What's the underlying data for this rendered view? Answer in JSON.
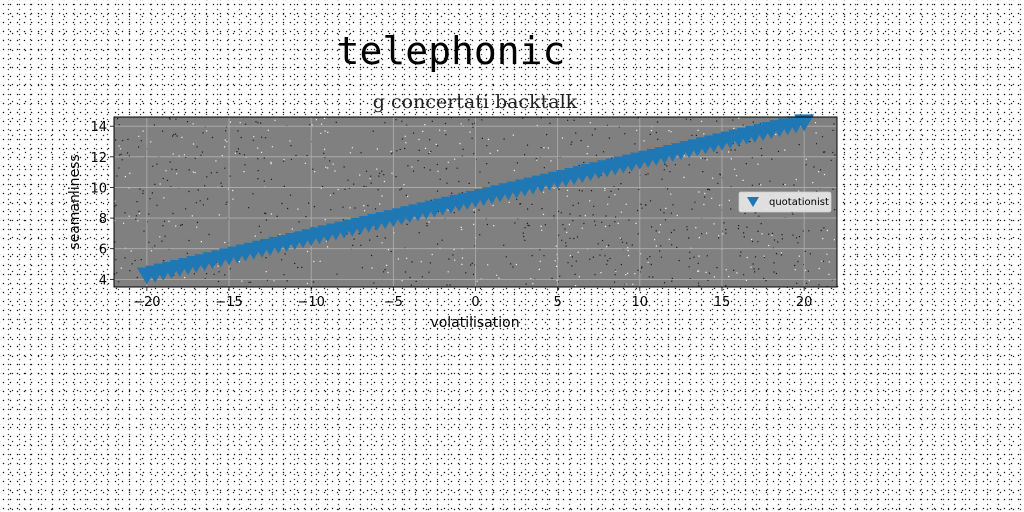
{
  "page": {
    "title": "telephonic"
  },
  "chart_data": {
    "type": "scatter",
    "title": "g concertati backtalk",
    "xlabel": "volatilisation",
    "ylabel": "seamanliness",
    "xlim": [
      -22,
      22
    ],
    "ylim": [
      3.5,
      14.6
    ],
    "xticks": [
      -20,
      -15,
      -10,
      -5,
      0,
      5,
      10,
      15,
      20
    ],
    "yticks": [
      4,
      6,
      8,
      10,
      12,
      14
    ],
    "xtick_labels": [
      "−20",
      "−15",
      "−10",
      "−5",
      "0",
      "5",
      "10",
      "15",
      "20"
    ],
    "ytick_labels": [
      "4",
      "6",
      "8",
      "10",
      "12",
      "14"
    ],
    "grid": true,
    "legend_position": "center-right",
    "plot_background": "#808080",
    "series": [
      {
        "name": "quotationist",
        "marker": "triangle-down",
        "color": "#1f77b4",
        "x": [
          -20.0,
          -19.5,
          -19.0,
          -18.5,
          -18.0,
          -17.5,
          -17.0,
          -16.5,
          -16.0,
          -15.5,
          -15.0,
          -14.5,
          -14.0,
          -13.5,
          -13.0,
          -12.5,
          -12.0,
          -11.5,
          -11.0,
          -10.5,
          -10.0,
          -9.5,
          -9.0,
          -8.5,
          -8.0,
          -7.5,
          -7.0,
          -6.5,
          -6.0,
          -5.5,
          -5.0,
          -4.5,
          -4.0,
          -3.5,
          -3.0,
          -2.5,
          -2.0,
          -1.5,
          -1.0,
          -0.5,
          0.0,
          0.5,
          1.0,
          1.5,
          2.0,
          2.5,
          3.0,
          3.5,
          4.0,
          4.5,
          5.0,
          5.5,
          6.0,
          6.5,
          7.0,
          7.5,
          8.0,
          8.5,
          9.0,
          9.5,
          10.0,
          10.5,
          11.0,
          11.5,
          12.0,
          12.5,
          13.0,
          13.5,
          14.0,
          14.5,
          15.0,
          15.5,
          16.0,
          16.5,
          17.0,
          17.5,
          18.0,
          18.5,
          19.0,
          19.5,
          20.0
        ],
        "y": [
          4.25,
          4.37,
          4.5,
          4.62,
          4.75,
          4.87,
          5.0,
          5.12,
          5.25,
          5.37,
          5.5,
          5.62,
          5.75,
          5.87,
          6.0,
          6.12,
          6.25,
          6.37,
          6.5,
          6.62,
          6.75,
          6.87,
          7.0,
          7.12,
          7.25,
          7.37,
          7.5,
          7.62,
          7.75,
          7.87,
          8.0,
          8.12,
          8.25,
          8.37,
          8.5,
          8.62,
          8.75,
          8.87,
          9.0,
          9.12,
          9.25,
          9.37,
          9.5,
          9.62,
          9.75,
          9.87,
          10.0,
          10.12,
          10.25,
          10.37,
          10.5,
          10.62,
          10.75,
          10.87,
          11.0,
          11.12,
          11.25,
          11.37,
          11.5,
          11.62,
          11.75,
          11.87,
          12.0,
          12.12,
          12.25,
          12.37,
          12.5,
          12.62,
          12.75,
          12.87,
          13.0,
          13.12,
          13.25,
          13.37,
          13.5,
          13.62,
          13.75,
          13.87,
          14.0,
          14.12,
          14.25
        ]
      }
    ]
  }
}
